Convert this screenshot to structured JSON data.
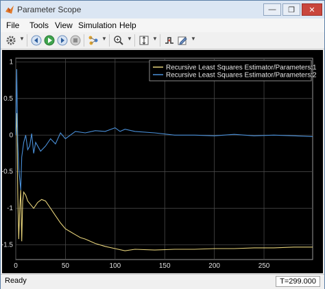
{
  "window": {
    "title": "Parameter Scope",
    "controls": {
      "minimize": "—",
      "restore": "❐",
      "close": "✕"
    }
  },
  "menu": [
    "File",
    "Tools",
    "View",
    "Simulation",
    "Help"
  ],
  "toolbar": {
    "icons": [
      "gear-icon",
      "step-back-icon",
      "run-icon",
      "step-forward-icon",
      "stop-icon",
      "highlight-icon",
      "zoom-icon",
      "scale-axes-icon",
      "triggers-icon",
      "edit-icon"
    ]
  },
  "status": {
    "left": "Ready",
    "right": "T=299.000"
  },
  "colors": {
    "series1": "#e6d27a",
    "series2": "#4a90d9",
    "grid": "#4a4a4a",
    "axis": "#9a9a9a"
  },
  "chart_data": {
    "type": "line",
    "xlim": [
      0,
      299
    ],
    "ylim": [
      -1.7,
      1.05
    ],
    "xticks": [
      0,
      50,
      100,
      150,
      200,
      250
    ],
    "yticks": [
      1,
      0.5,
      0,
      -0.5,
      -1,
      -1.5
    ],
    "tick_labels": {
      "x": [
        "0",
        "50",
        "100",
        "150",
        "200",
        "250"
      ],
      "y": [
        "1",
        "0.5",
        "0",
        "-0.5",
        "-1",
        "-1.5"
      ]
    },
    "grid": true,
    "legend": "top-right",
    "series": [
      {
        "name": "Recursive Least Squares Estimator/Parameters:1",
        "x": [
          0,
          1,
          2,
          3,
          4,
          5,
          6,
          7,
          8,
          10,
          12,
          15,
          18,
          22,
          26,
          30,
          35,
          40,
          45,
          50,
          55,
          60,
          65,
          70,
          75,
          80,
          90,
          100,
          110,
          120,
          140,
          160,
          180,
          200,
          220,
          240,
          260,
          280,
          299
        ],
        "values": [
          0,
          0.3,
          -0.8,
          -1.42,
          -1.0,
          -0.75,
          -1.45,
          -0.9,
          -0.78,
          -0.82,
          -0.9,
          -0.95,
          -1.0,
          -0.92,
          -0.88,
          -0.9,
          -1.0,
          -1.1,
          -1.2,
          -1.28,
          -1.32,
          -1.36,
          -1.4,
          -1.42,
          -1.45,
          -1.48,
          -1.52,
          -1.55,
          -1.58,
          -1.56,
          -1.57,
          -1.56,
          -1.56,
          -1.55,
          -1.55,
          -1.54,
          -1.54,
          -1.53,
          -1.53
        ]
      },
      {
        "name": "Recursive Least Squares Estimator/Parameters:2",
        "x": [
          0,
          1,
          2,
          3,
          5,
          6,
          8,
          10,
          12,
          14,
          16,
          18,
          20,
          25,
          30,
          35,
          40,
          45,
          50,
          55,
          60,
          70,
          80,
          90,
          100,
          105,
          110,
          120,
          140,
          160,
          180,
          200,
          220,
          240,
          260,
          280,
          299
        ],
        "values": [
          0,
          0.9,
          -0.1,
          -0.45,
          -0.75,
          -0.3,
          -0.1,
          0.0,
          -0.2,
          -0.15,
          0.02,
          -0.25,
          -0.1,
          -0.22,
          -0.15,
          -0.05,
          -0.12,
          0.03,
          -0.05,
          0.0,
          0.05,
          0.03,
          0.06,
          0.05,
          0.1,
          0.05,
          0.08,
          0.05,
          0.03,
          0.0,
          0.0,
          -0.01,
          0.01,
          -0.01,
          0.0,
          -0.01,
          -0.02
        ]
      }
    ]
  }
}
